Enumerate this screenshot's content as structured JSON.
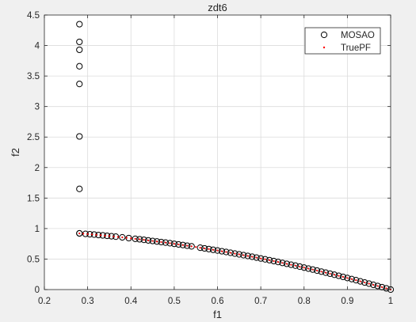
{
  "colors": {
    "figure_bg": "#f0f0f0",
    "axes_bg": "#ffffff",
    "grid": "#dcdcdc",
    "axis_line": "#262626",
    "series_mosao": "#000000",
    "series_truepf": "#ff0000"
  },
  "chart_data": {
    "type": "scatter",
    "title": "zdt6",
    "xlabel": "f1",
    "ylabel": "f2",
    "xlim": [
      0.2,
      1
    ],
    "ylim": [
      0,
      4.5
    ],
    "xticks": [
      "0.2",
      "0.3",
      "0.4",
      "0.5",
      "0.6",
      "0.7",
      "0.8",
      "0.9",
      "1"
    ],
    "yticks": [
      "0",
      "0.5",
      "1",
      "1.5",
      "2",
      "2.5",
      "3",
      "3.5",
      "4",
      "4.5"
    ],
    "grid": true,
    "legend": {
      "placement": "top-right"
    },
    "series": [
      {
        "name": "MOSAO",
        "marker": "open-circle",
        "x": [
          0.281,
          0.281,
          0.281,
          0.281,
          0.281,
          0.281,
          0.281,
          0.281,
          0.281,
          0.295,
          0.305,
          0.315,
          0.325,
          0.335,
          0.345,
          0.355,
          0.365,
          0.38,
          0.395,
          0.41,
          0.42,
          0.43,
          0.44,
          0.45,
          0.46,
          0.47,
          0.48,
          0.49,
          0.5,
          0.51,
          0.52,
          0.53,
          0.54,
          0.56,
          0.57,
          0.58,
          0.59,
          0.6,
          0.61,
          0.62,
          0.63,
          0.64,
          0.65,
          0.66,
          0.67,
          0.68,
          0.69,
          0.7,
          0.71,
          0.72,
          0.73,
          0.74,
          0.75,
          0.76,
          0.77,
          0.78,
          0.79,
          0.8,
          0.81,
          0.82,
          0.83,
          0.84,
          0.85,
          0.86,
          0.87,
          0.88,
          0.89,
          0.9,
          0.91,
          0.92,
          0.93,
          0.94,
          0.95,
          0.96,
          0.97,
          0.98,
          0.99,
          1.0
        ],
        "y": [
          4.35,
          4.06,
          3.93,
          3.66,
          3.37,
          2.51,
          1.65,
          0.921,
          0.921,
          0.913,
          0.907,
          0.901,
          0.894,
          0.888,
          0.881,
          0.874,
          0.867,
          0.856,
          0.844,
          0.832,
          0.824,
          0.815,
          0.806,
          0.797,
          0.788,
          0.779,
          0.77,
          0.76,
          0.75,
          0.74,
          0.73,
          0.719,
          0.708,
          0.686,
          0.675,
          0.664,
          0.652,
          0.64,
          0.628,
          0.616,
          0.603,
          0.59,
          0.577,
          0.564,
          0.551,
          0.538,
          0.524,
          0.51,
          0.496,
          0.482,
          0.467,
          0.452,
          0.437,
          0.422,
          0.407,
          0.392,
          0.376,
          0.36,
          0.344,
          0.328,
          0.311,
          0.294,
          0.277,
          0.26,
          0.243,
          0.226,
          0.208,
          0.19,
          0.172,
          0.154,
          0.135,
          0.116,
          0.097,
          0.078,
          0.059,
          0.04,
          0.02,
          0.0
        ]
      },
      {
        "name": "TruePF",
        "marker": "dot",
        "x": [
          0.281,
          0.29,
          0.3,
          0.31,
          0.32,
          0.33,
          0.34,
          0.35,
          0.36,
          0.37,
          0.38,
          0.39,
          0.4,
          0.41,
          0.42,
          0.43,
          0.44,
          0.45,
          0.46,
          0.47,
          0.48,
          0.49,
          0.5,
          0.51,
          0.52,
          0.53,
          0.54,
          0.55,
          0.56,
          0.57,
          0.58,
          0.59,
          0.6,
          0.61,
          0.62,
          0.63,
          0.64,
          0.65,
          0.66,
          0.67,
          0.68,
          0.69,
          0.7,
          0.71,
          0.72,
          0.73,
          0.74,
          0.75,
          0.76,
          0.77,
          0.78,
          0.79,
          0.8,
          0.81,
          0.82,
          0.83,
          0.84,
          0.85,
          0.86,
          0.87,
          0.88,
          0.89,
          0.9,
          0.91,
          0.92,
          0.93,
          0.94,
          0.95,
          0.96,
          0.97,
          0.98,
          0.99,
          1.0
        ],
        "y": [
          0.921,
          0.916,
          0.91,
          0.904,
          0.898,
          0.891,
          0.884,
          0.878,
          0.87,
          0.863,
          0.856,
          0.848,
          0.84,
          0.832,
          0.824,
          0.815,
          0.806,
          0.797,
          0.788,
          0.779,
          0.77,
          0.76,
          0.75,
          0.74,
          0.73,
          0.719,
          0.708,
          0.698,
          0.686,
          0.675,
          0.664,
          0.652,
          0.64,
          0.628,
          0.616,
          0.603,
          0.59,
          0.577,
          0.564,
          0.551,
          0.538,
          0.524,
          0.51,
          0.496,
          0.482,
          0.467,
          0.452,
          0.437,
          0.422,
          0.407,
          0.392,
          0.376,
          0.36,
          0.344,
          0.328,
          0.311,
          0.294,
          0.277,
          0.26,
          0.243,
          0.226,
          0.208,
          0.19,
          0.172,
          0.154,
          0.135,
          0.116,
          0.097,
          0.078,
          0.059,
          0.04,
          0.02,
          0.0
        ]
      }
    ]
  }
}
